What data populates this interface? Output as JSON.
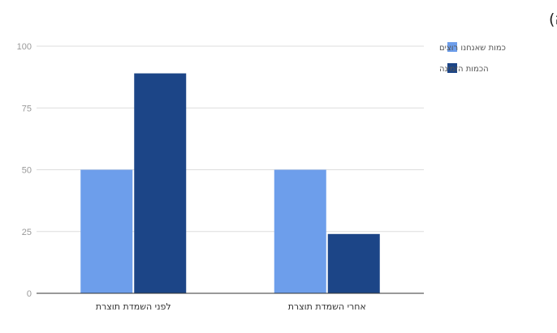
{
  "chart_data": {
    "type": "bar",
    "title": "השמדת תוצרת במטרה לשמר מחסור באופן מלאכותי (אילוסטרציה)",
    "xlabel": "",
    "ylabel": "",
    "categories": [
      "לפני השמדת תוצרת",
      "אחרי השמדת תוצרת"
    ],
    "series": [
      {
        "name": "כמות שאנחנו רוצים",
        "values": [
          50,
          50
        ],
        "color": "#6d9eeb"
      },
      {
        "name": "הכמות הזמינה",
        "values": [
          89,
          24
        ],
        "color": "#1c4587"
      }
    ],
    "ylim": [
      0,
      100
    ],
    "yticks": [
      0,
      25,
      50,
      75,
      100
    ],
    "grid": true,
    "legend": "right"
  }
}
